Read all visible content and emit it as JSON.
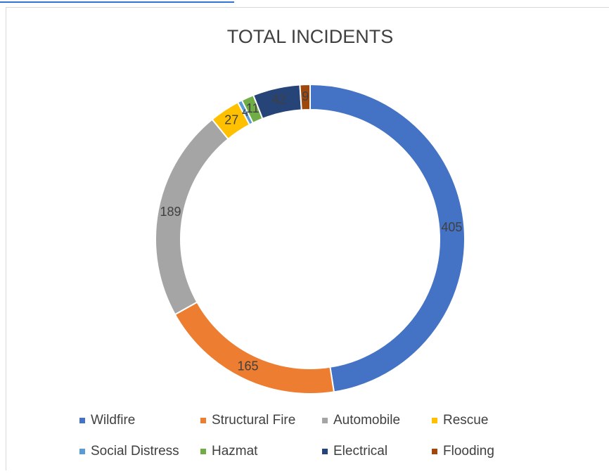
{
  "chart_data": {
    "type": "pie",
    "title": "TOTAL INCIDENTS",
    "categories": [
      "Wildfire",
      "Structural Fire",
      "Automobile",
      "Rescue",
      "Social Distress",
      "Hazmat",
      "Electrical",
      "Flooding"
    ],
    "values": [
      405,
      165,
      189,
      27,
      4,
      11,
      42,
      9
    ],
    "colors": [
      "#4472c4",
      "#ed7d31",
      "#a5a5a5",
      "#ffc000",
      "#5b9bd5",
      "#70ad47",
      "#264478",
      "#9e480e"
    ],
    "donut": true,
    "legend": "bottom"
  }
}
